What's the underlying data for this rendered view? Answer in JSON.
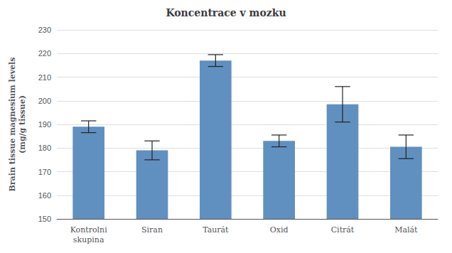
{
  "chart_data": {
    "type": "bar",
    "title": "Koncentrace v mozku",
    "ylabel": "Brain tissue magnesium levels\n(mg/g tissue)",
    "categories": [
      "Kontrolni\nskupina",
      "Siran",
      "Taurát",
      "Oxid",
      "Citrát",
      "Malát"
    ],
    "values": [
      189.0,
      179.0,
      217.0,
      183.0,
      198.5,
      180.5
    ],
    "errors": [
      2.5,
      4.0,
      2.5,
      2.5,
      7.5,
      5.0
    ],
    "color": "#6090c0",
    "ylim": [
      150,
      230
    ],
    "yticks": [
      150,
      160,
      170,
      180,
      190,
      200,
      210,
      220,
      230
    ],
    "grid": true
  }
}
